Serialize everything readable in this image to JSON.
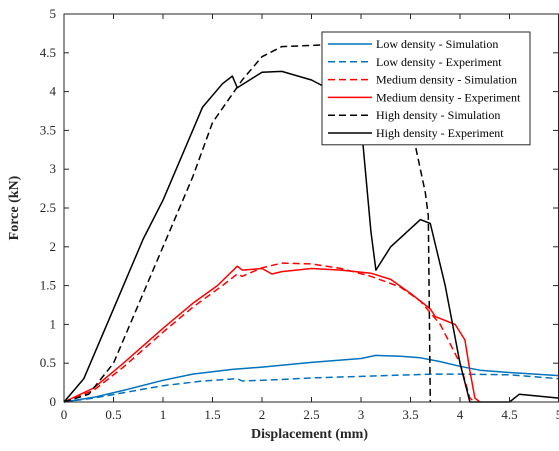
{
  "chart_data": {
    "type": "line",
    "xlabel": "Displacement (mm)",
    "ylabel": "Force (kN)",
    "xlim": [
      0,
      5
    ],
    "ylim": [
      0,
      5
    ],
    "x_ticks": [
      "0",
      "0.5",
      "1",
      "1.5",
      "2",
      "2.5",
      "3",
      "3.5",
      "4",
      "4.5",
      "5"
    ],
    "y_ticks": [
      "0",
      "0.5",
      "1",
      "1.5",
      "2",
      "2.5",
      "3",
      "3.5",
      "4",
      "4.5",
      "5"
    ],
    "grid": false,
    "legend_position": "top-right",
    "series": [
      {
        "name": "Low density - Simulation",
        "color": "#0072BD",
        "dash": "solid",
        "points": [
          [
            0,
            0
          ],
          [
            0.3,
            0.06
          ],
          [
            0.6,
            0.15
          ],
          [
            1.0,
            0.28
          ],
          [
            1.3,
            0.36
          ],
          [
            1.7,
            0.42
          ],
          [
            2.0,
            0.45
          ],
          [
            2.5,
            0.51
          ],
          [
            3.0,
            0.56
          ],
          [
            3.15,
            0.6
          ],
          [
            3.4,
            0.59
          ],
          [
            3.6,
            0.57
          ],
          [
            3.8,
            0.52
          ],
          [
            4.0,
            0.46
          ],
          [
            4.2,
            0.41
          ],
          [
            4.5,
            0.38
          ],
          [
            5.0,
            0.34
          ]
        ]
      },
      {
        "name": "Low density - Experiment",
        "color": "#0072BD",
        "dash": "dashed",
        "points": [
          [
            0,
            0
          ],
          [
            0.3,
            0.05
          ],
          [
            0.6,
            0.12
          ],
          [
            1.0,
            0.21
          ],
          [
            1.4,
            0.27
          ],
          [
            1.75,
            0.3
          ],
          [
            1.8,
            0.27
          ],
          [
            2.2,
            0.29
          ],
          [
            2.5,
            0.31
          ],
          [
            3.0,
            0.33
          ],
          [
            3.5,
            0.35
          ],
          [
            3.75,
            0.36
          ],
          [
            4.0,
            0.36
          ],
          [
            4.5,
            0.35
          ],
          [
            5.0,
            0.3
          ]
        ]
      },
      {
        "name": "Medium density - Simulation",
        "color": "#FF0000",
        "dash": "dashed",
        "points": [
          [
            0,
            0
          ],
          [
            0.3,
            0.15
          ],
          [
            0.6,
            0.45
          ],
          [
            1.0,
            0.9
          ],
          [
            1.3,
            1.22
          ],
          [
            1.6,
            1.5
          ],
          [
            1.75,
            1.65
          ],
          [
            1.8,
            1.62
          ],
          [
            2.0,
            1.73
          ],
          [
            2.2,
            1.79
          ],
          [
            2.5,
            1.78
          ],
          [
            2.8,
            1.72
          ],
          [
            3.1,
            1.62
          ],
          [
            3.4,
            1.48
          ],
          [
            3.6,
            1.3
          ],
          [
            3.8,
            1.0
          ],
          [
            4.0,
            0.5
          ],
          [
            4.1,
            0.05
          ],
          [
            4.15,
            0
          ]
        ]
      },
      {
        "name": "Medium density - Experiment",
        "color": "#FF0000",
        "dash": "solid",
        "points": [
          [
            0,
            0
          ],
          [
            0.3,
            0.18
          ],
          [
            0.6,
            0.5
          ],
          [
            1.0,
            0.95
          ],
          [
            1.3,
            1.27
          ],
          [
            1.55,
            1.5
          ],
          [
            1.75,
            1.75
          ],
          [
            1.8,
            1.7
          ],
          [
            2.0,
            1.72
          ],
          [
            2.1,
            1.65
          ],
          [
            2.2,
            1.68
          ],
          [
            2.5,
            1.72
          ],
          [
            2.8,
            1.7
          ],
          [
            3.1,
            1.66
          ],
          [
            3.3,
            1.58
          ],
          [
            3.5,
            1.4
          ],
          [
            3.7,
            1.2
          ],
          [
            3.75,
            1.1
          ],
          [
            3.95,
            1.0
          ],
          [
            4.05,
            0.8
          ],
          [
            4.1,
            0.4
          ],
          [
            4.15,
            0.05
          ],
          [
            4.2,
            0
          ]
        ]
      },
      {
        "name": "High density - Simulation",
        "color": "#000000",
        "dash": "dashed",
        "points": [
          [
            0,
            0
          ],
          [
            0.25,
            0.1
          ],
          [
            0.5,
            0.5
          ],
          [
            0.8,
            1.4
          ],
          [
            1.0,
            2.0
          ],
          [
            1.3,
            2.9
          ],
          [
            1.5,
            3.6
          ],
          [
            1.8,
            4.15
          ],
          [
            2.0,
            4.45
          ],
          [
            2.2,
            4.58
          ],
          [
            2.6,
            4.6
          ],
          [
            2.8,
            4.55
          ],
          [
            3.2,
            4.4
          ],
          [
            3.4,
            4.0
          ],
          [
            3.55,
            3.3
          ],
          [
            3.65,
            2.7
          ],
          [
            3.68,
            2.4
          ],
          [
            3.7,
            0
          ]
        ]
      },
      {
        "name": "High density - Experiment",
        "color": "#000000",
        "dash": "solid",
        "points": [
          [
            0,
            0
          ],
          [
            0.2,
            0.3
          ],
          [
            0.5,
            1.2
          ],
          [
            0.8,
            2.1
          ],
          [
            1.0,
            2.6
          ],
          [
            1.2,
            3.2
          ],
          [
            1.4,
            3.8
          ],
          [
            1.6,
            4.1
          ],
          [
            1.7,
            4.2
          ],
          [
            1.75,
            4.05
          ],
          [
            2.0,
            4.25
          ],
          [
            2.2,
            4.26
          ],
          [
            2.5,
            4.15
          ],
          [
            2.8,
            3.95
          ],
          [
            3.0,
            3.6
          ],
          [
            3.1,
            2.2
          ],
          [
            3.15,
            1.7
          ],
          [
            3.3,
            2.0
          ],
          [
            3.6,
            2.35
          ],
          [
            3.7,
            2.3
          ],
          [
            3.85,
            1.5
          ],
          [
            4.0,
            0.5
          ],
          [
            4.1,
            0
          ],
          [
            4.5,
            0
          ],
          [
            4.6,
            0.1
          ],
          [
            5.0,
            0.05
          ]
        ]
      }
    ]
  }
}
